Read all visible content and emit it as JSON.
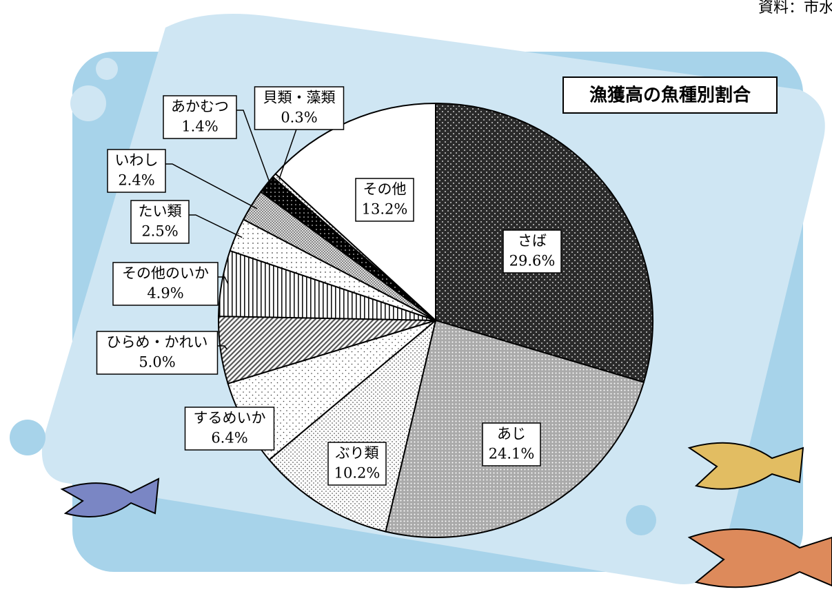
{
  "chart_data": {
    "type": "pie",
    "title": "漁獲高の魚種別割合",
    "source": "資料：市水産",
    "categories": [
      "さば",
      "あじ",
      "ぶり類",
      "するめいか",
      "ひらめ・かれい",
      "その他のいか",
      "たい類",
      "いわし",
      "あかむつ",
      "貝類・藻類",
      "その他"
    ],
    "values": [
      29.6,
      24.1,
      10.2,
      6.4,
      5.0,
      4.9,
      2.5,
      2.4,
      1.4,
      0.3,
      13.2
    ],
    "value_labels": [
      "29.6%",
      "24.1%",
      "10.2%",
      "6.4%",
      "5.0%",
      "4.9%",
      "2.5%",
      "2.4%",
      "1.4%",
      "0.3%",
      "13.2%"
    ]
  }
}
